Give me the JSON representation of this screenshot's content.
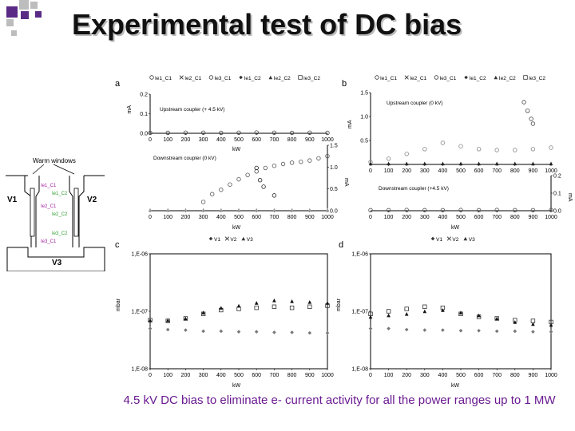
{
  "slide": {
    "title": "Experimental test of DC bias",
    "caption": "4.5 kV DC bias to eliminate e- current activity for all the power ranges up to 1 MW"
  },
  "colors": {
    "title": "#111111",
    "caption": "#6a1a90",
    "deco_purple": "#5b2a86",
    "deco_gray": "#bdbdbd",
    "label_purple": "#a020a0",
    "label_green": "#2a9a2a"
  },
  "schematic": {
    "warm_windows_label": "Warm windows",
    "v1": "V1",
    "v2": "V2",
    "v3": "V3",
    "probe_labels": [
      {
        "text": "Ie1_C1",
        "color": "#a020a0"
      },
      {
        "text": "Ie1_C2",
        "color": "#2a9a2a"
      },
      {
        "text": "Ie2_C1",
        "color": "#a020a0"
      },
      {
        "text": "Ie2_C2",
        "color": "#2a9a2a"
      },
      {
        "text": "Ie3_C2",
        "color": "#2a9a2a"
      },
      {
        "text": "Ie3_C1",
        "color": "#a020a0"
      }
    ]
  },
  "chart_data": [
    {
      "panel": "a",
      "type": "scatter",
      "legend": [
        "Ie1_C1",
        "Ie2_C1",
        "Ie3_C1",
        "Ie1_C2",
        "Ie2_C2",
        "Ie3_C2"
      ],
      "x_ticks": [
        "0",
        "100",
        "200",
        "300",
        "400",
        "500",
        "600",
        "700",
        "800",
        "900",
        "1000"
      ],
      "xlabel": "kW",
      "xlim": [
        0,
        1000
      ],
      "upper": {
        "annotation": "Upstream coupler (+ 4.5 kV)",
        "ylabel": "mA",
        "y_ticks": [
          "0.2",
          "0.1",
          "0.0"
        ],
        "ylim": [
          0,
          0.2
        ],
        "series": [
          {
            "x": [
              0,
              100,
              200,
              300,
              400,
              500,
              600,
              700,
              800,
              900,
              1000
            ],
            "y": [
              0.002,
              0.002,
              0.003,
              0.003,
              0.002,
              0.003,
              0.004,
              0.003,
              0.002,
              0.003,
              0.002
            ]
          }
        ]
      },
      "lower": {
        "annotation": "Downstream coupler (0 kV)",
        "ylabel": "mA",
        "y_ticks": [
          "1.5",
          "1.0",
          "0.5",
          "0.0"
        ],
        "ylim": [
          0,
          1.5
        ],
        "series": [
          {
            "x": [
              300,
              350,
              400,
              450,
              500,
              550,
              600,
              650,
              700,
              750,
              800,
              850,
              900,
              950,
              1000
            ],
            "y": [
              0.2,
              0.38,
              0.48,
              0.6,
              0.72,
              0.82,
              0.9,
              0.98,
              1.03,
              1.07,
              1.1,
              1.12,
              1.15,
              1.2,
              1.25
            ]
          },
          {
            "x": [
              600,
              620,
              640,
              700
            ],
            "y": [
              0.98,
              0.7,
              0.55,
              0.35
            ]
          },
          {
            "x": [
              0,
              100,
              200,
              300,
              400,
              500,
              600,
              700,
              800,
              900,
              1000
            ],
            "y": [
              0.02,
              0.02,
              0.02,
              0.02,
              0.02,
              0.02,
              0.02,
              0.02,
              0.02,
              0.02,
              0.02
            ]
          }
        ]
      }
    },
    {
      "panel": "b",
      "type": "scatter",
      "legend": [
        "Ie1_C1",
        "Ie2_C1",
        "Ie3_C1",
        "Ie1_C2",
        "Ie2_C2",
        "Ie3_C2"
      ],
      "x_ticks": [
        "0",
        "100",
        "200",
        "300",
        "400",
        "500",
        "600",
        "700",
        "800",
        "900",
        "1000"
      ],
      "xlabel": "kW",
      "xlim": [
        0,
        1000
      ],
      "upper": {
        "annotation": "Upstream coupler (0 kV)",
        "ylabel": "mA",
        "y_ticks": [
          "1.5",
          "1.0",
          "0.5"
        ],
        "ylim": [
          0,
          1.5
        ],
        "series": [
          {
            "x": [
              850,
              870,
              890,
              900
            ],
            "y": [
              1.3,
              1.12,
              0.95,
              0.85
            ]
          },
          {
            "x": [
              0,
              100,
              200,
              300,
              400,
              500,
              600,
              700,
              800,
              900,
              1000
            ],
            "y": [
              0.05,
              0.12,
              0.22,
              0.32,
              0.45,
              0.38,
              0.32,
              0.3,
              0.3,
              0.32,
              0.35
            ]
          },
          {
            "x": [
              0,
              100,
              200,
              300,
              400,
              500,
              600,
              700,
              800,
              900,
              1000
            ],
            "y": [
              0.02,
              0.02,
              0.02,
              0.02,
              0.02,
              0.02,
              0.02,
              0.02,
              0.02,
              0.02,
              0.02
            ]
          }
        ]
      },
      "lower": {
        "annotation": "Downstream coupler (+4.5 kV)",
        "ylabel": "mA",
        "y_ticks": [
          "0.2",
          "0.1",
          "0.0"
        ],
        "ylim": [
          0,
          0.2
        ],
        "series": [
          {
            "x": [
              0,
              100,
              200,
              300,
              400,
              500,
              600,
              700,
              800,
              900,
              1000
            ],
            "y": [
              0.003,
              0.003,
              0.004,
              0.003,
              0.003,
              0.004,
              0.003,
              0.004,
              0.003,
              0.003,
              0.004
            ]
          }
        ]
      }
    },
    {
      "panel": "c",
      "type": "scatter",
      "legend": [
        "V1",
        "V2",
        "V3"
      ],
      "ylabel": "mbar",
      "y_ticks": [
        "1,E-06",
        "1,E-07",
        "1,E-08"
      ],
      "y_scale": "log",
      "ylim": [
        1e-08,
        1e-06
      ],
      "x_ticks": [
        "0",
        "100",
        "200",
        "300",
        "400",
        "500",
        "600",
        "700",
        "800",
        "900",
        "1000"
      ],
      "xlabel": "kW",
      "xlim": [
        0,
        1000
      ],
      "series": [
        {
          "name": "V1",
          "x": [
            0,
            100,
            200,
            300,
            400,
            500,
            600,
            700,
            800,
            900,
            1000
          ],
          "y": [
            5e-08,
            4.8e-08,
            4.7e-08,
            4.5e-08,
            4.5e-08,
            4.4e-08,
            4.4e-08,
            4.3e-08,
            4.3e-08,
            4.2e-08,
            4.2e-08
          ]
        },
        {
          "name": "V2",
          "x": [
            0,
            100,
            200,
            300,
            400,
            500,
            600,
            700,
            800,
            900,
            1000
          ],
          "y": [
            7e-08,
            6.8e-08,
            7.5e-08,
            9e-08,
            1.05e-07,
            1.1e-07,
            1.15e-07,
            1.2e-07,
            1.15e-07,
            1.2e-07,
            1.25e-07
          ]
        },
        {
          "name": "V3",
          "x": [
            0,
            100,
            200,
            300,
            400,
            500,
            600,
            700,
            800,
            900,
            1000
          ],
          "y": [
            7e-08,
            7e-08,
            7.5e-08,
            9.5e-08,
            1.15e-07,
            1.25e-07,
            1.4e-07,
            1.55e-07,
            1.5e-07,
            1.45e-07,
            1.4e-07
          ]
        }
      ]
    },
    {
      "panel": "d",
      "type": "scatter",
      "legend": [
        "V1",
        "V2",
        "V3"
      ],
      "ylabel": "mbar",
      "y_ticks": [
        "1,E-06",
        "1,E-07",
        "1,E-08"
      ],
      "y_scale": "log",
      "ylim": [
        1e-08,
        1e-06
      ],
      "x_ticks": [
        "0",
        "100",
        "200",
        "300",
        "400",
        "500",
        "600",
        "700",
        "800",
        "900",
        "1000"
      ],
      "xlabel": "kW",
      "xlim": [
        0,
        1000
      ],
      "series": [
        {
          "name": "V1",
          "x": [
            0,
            100,
            200,
            300,
            400,
            500,
            600,
            700,
            800,
            900,
            1000
          ],
          "y": [
            5e-08,
            5e-08,
            4.8e-08,
            4.7e-08,
            4.7e-08,
            4.6e-08,
            4.6e-08,
            4.5e-08,
            4.5e-08,
            4.4e-08,
            4.4e-08
          ]
        },
        {
          "name": "V2",
          "x": [
            0,
            100,
            200,
            300,
            400,
            500,
            600,
            700,
            800,
            900,
            1000
          ],
          "y": [
            9e-08,
            1e-07,
            1.1e-07,
            1.2e-07,
            1.15e-07,
            9e-08,
            8e-08,
            7.5e-08,
            7e-08,
            6.8e-08,
            6.5e-08
          ]
        },
        {
          "name": "V3",
          "x": [
            0,
            100,
            200,
            300,
            400,
            500,
            600,
            700,
            800,
            900,
            1000
          ],
          "y": [
            8e-08,
            8.5e-08,
            9e-08,
            1e-07,
            1.05e-07,
            9.5e-08,
            8.5e-08,
            7.5e-08,
            6.5e-08,
            6e-08,
            5.8e-08
          ]
        }
      ]
    }
  ]
}
